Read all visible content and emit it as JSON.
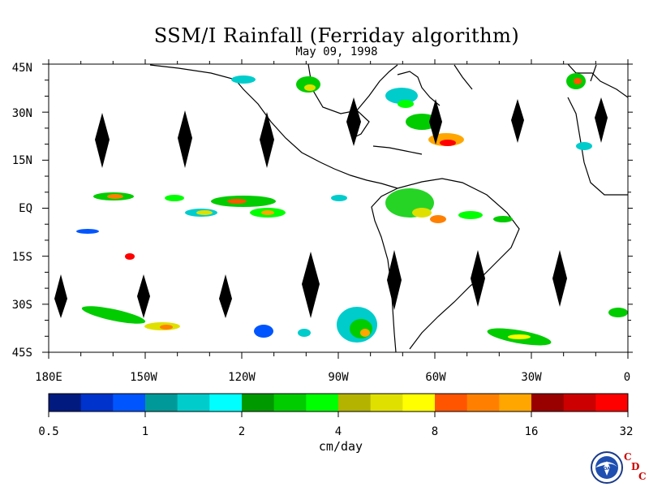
{
  "title": "SSM/I Rainfall (Ferriday algorithm)",
  "subtitle": "May 09, 1998",
  "lat_labels": [
    "45N",
    "30N",
    "15N",
    "EQ",
    "15S",
    "30S",
    "45S"
  ],
  "lon_labels": [
    "180E",
    "150W",
    "120W",
    "90W",
    "60W",
    "30W",
    "0"
  ],
  "colorbar": {
    "colors": [
      "#001a80",
      "#0033cc",
      "#0055ff",
      "#009999",
      "#00cccc",
      "#00ffff",
      "#009900",
      "#00cc00",
      "#00ff00",
      "#b3b300",
      "#e0e000",
      "#ffff00",
      "#ff5500",
      "#ff8000",
      "#ffa600",
      "#990000",
      "#cc0000",
      "#ff0000"
    ],
    "tick_labels": [
      "0.5",
      "1",
      "2",
      "4",
      "8",
      "16",
      "32"
    ],
    "units": "cm/day"
  },
  "logo": {
    "icon": "noaa-logo-icon",
    "letters": [
      "C",
      "D",
      "C"
    ]
  }
}
